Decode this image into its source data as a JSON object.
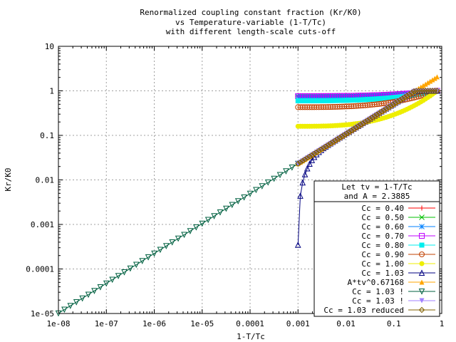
{
  "chart_data": {
    "type": "line",
    "title_lines": [
      "Renormalized coupling constant fraction (Kr/K0)",
      "vs Temperature-variable (1-T/Tc)",
      "with different length-scale cuts-off"
    ],
    "xlabel": "1-T/Tc",
    "ylabel": "Kr/K0",
    "x_scale": "log",
    "y_scale": "log",
    "xlim": [
      1e-08,
      1
    ],
    "ylim": [
      1e-05,
      10
    ],
    "grid": true,
    "x_ticks": [
      {
        "v": 1e-08,
        "label": "1e-08"
      },
      {
        "v": 1e-07,
        "label": "1e-07"
      },
      {
        "v": 1e-06,
        "label": "1e-06"
      },
      {
        "v": 1e-05,
        "label": "1e-05"
      },
      {
        "v": 0.0001,
        "label": "0.0001"
      },
      {
        "v": 0.001,
        "label": "0.001"
      },
      {
        "v": 0.01,
        "label": "0.01"
      },
      {
        "v": 0.1,
        "label": "0.1"
      },
      {
        "v": 1,
        "label": "1"
      }
    ],
    "y_ticks": [
      {
        "v": 1e-05,
        "label": "1e-05"
      },
      {
        "v": 0.0001,
        "label": "0.0001"
      },
      {
        "v": 0.001,
        "label": "0.001"
      },
      {
        "v": 0.01,
        "label": "0.01"
      },
      {
        "v": 0.1,
        "label": "0.1"
      },
      {
        "v": 1,
        "label": "1"
      },
      {
        "v": 10,
        "label": "10"
      }
    ],
    "legend_placement": "bottom-right",
    "legend_header": [
      "Let tv = 1-T/Tc",
      "and A = 2.3885"
    ],
    "amplitude_A": 2.3885,
    "exponent": 0.67168,
    "series": [
      {
        "name": "Cc = 0.40",
        "color": "#ff0000",
        "marker": "plus",
        "x_range": [
          0.001,
          0.8
        ],
        "start_value": 0.77,
        "end_value": 1.0
      },
      {
        "name": "Cc = 0.50",
        "color": "#00c000",
        "marker": "cross",
        "x_range": [
          0.001,
          0.8
        ],
        "start_value": 0.76,
        "end_value": 1.0
      },
      {
        "name": "Cc = 0.60",
        "color": "#0080ff",
        "marker": "star",
        "x_range": [
          0.001,
          0.8
        ],
        "start_value": 0.75,
        "end_value": 1.0
      },
      {
        "name": "Cc = 0.70",
        "color": "#c000ff",
        "marker": "square",
        "x_range": [
          0.001,
          0.8
        ],
        "start_value": 0.76,
        "end_value": 1.0
      },
      {
        "name": "Cc = 0.80",
        "color": "#00eeee",
        "marker": "filled-square",
        "x_range": [
          0.001,
          0.8
        ],
        "start_value": 0.6,
        "end_value": 1.0
      },
      {
        "name": "Cc = 0.90",
        "color": "#c04000",
        "marker": "circle",
        "x_range": [
          0.001,
          0.8
        ],
        "start_value": 0.43,
        "end_value": 1.0
      },
      {
        "name": "Cc = 1.00",
        "color": "#eeee00",
        "marker": "filled-circle",
        "x_range": [
          0.001,
          0.8
        ],
        "start_value": 0.16,
        "end_value": 1.0
      },
      {
        "name": "Cc = 1.03",
        "color": "#000080",
        "marker": "triangle",
        "x_range": [
          0.001,
          0.8
        ],
        "start_value": 0.005,
        "end_value": 1.0
      },
      {
        "name": "A*tv^0.67168",
        "color": "#ffa500",
        "marker": "filled-triangle",
        "x_range": [
          0.001,
          0.8
        ],
        "start_value": 0.023,
        "end_value": 2.1
      },
      {
        "name": "Cc = 1.03 !",
        "color": "#006040",
        "marker": "down-triangle",
        "x_range": [
          1e-08,
          0.001
        ],
        "start_value": 1e-05,
        "end_value": 0.023
      },
      {
        "name": "Cc = 1.03 !",
        "color": "#a080ff",
        "marker": "filled-down-triangle",
        "x_range": [
          0.001,
          0.8
        ],
        "start_value": 0.023,
        "end_value": 1.0
      },
      {
        "name": "Cc = 1.03 reduced",
        "color": "#806000",
        "marker": "diamond",
        "x_range": [
          0.001,
          0.8
        ],
        "start_value": 0.023,
        "end_value": 1.0
      }
    ]
  }
}
